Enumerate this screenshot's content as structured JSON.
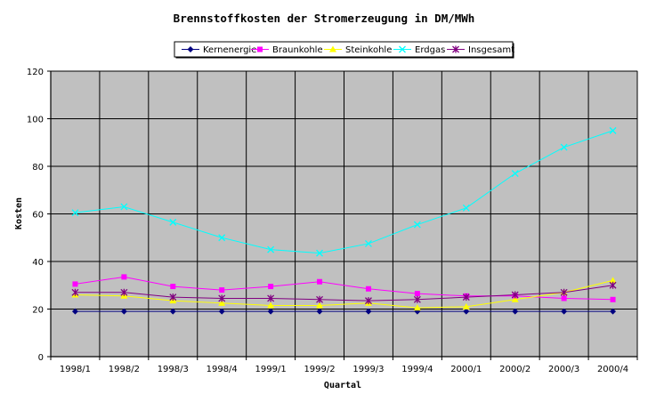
{
  "chart_data": {
    "type": "line",
    "title": "Brennstoffkosten der Stromerzeugung in DM/MWh",
    "xlabel": "Quartal",
    "ylabel": "Kosten",
    "ylim": [
      0,
      120
    ],
    "ytick_step": 20,
    "grid": true,
    "legend_position": "top-center",
    "plot_background": "#c0c0c0",
    "categories": [
      "1998/1",
      "1998/2",
      "1998/3",
      "1998/4",
      "1999/1",
      "1999/2",
      "1999/3",
      "1999/4",
      "2000/1",
      "2000/2",
      "2000/3",
      "2000/4"
    ],
    "series": [
      {
        "name": "Kernenergie",
        "color": "#000080",
        "marker": "diamond",
        "values": [
          19,
          19,
          19,
          19,
          19,
          19,
          19,
          19,
          19,
          19,
          19,
          19
        ]
      },
      {
        "name": "Braunkohle",
        "color": "#ff00ff",
        "marker": "square",
        "values": [
          30.5,
          33.5,
          29.5,
          28,
          29.5,
          31.5,
          28.5,
          26.5,
          25.5,
          25.5,
          24.5,
          24
        ]
      },
      {
        "name": "Steinkohle",
        "color": "#ffff00",
        "marker": "triangle",
        "values": [
          26,
          25.5,
          23.5,
          22.5,
          21.5,
          21.5,
          22.5,
          20.5,
          21,
          24,
          27,
          32
        ]
      },
      {
        "name": "Erdgas",
        "color": "#00ffff",
        "marker": "x",
        "values": [
          60.5,
          63,
          56.5,
          50,
          45,
          43.5,
          47.5,
          55.5,
          62.5,
          77,
          88,
          95
        ]
      },
      {
        "name": "Insgesamt",
        "color": "#800080",
        "marker": "star",
        "values": [
          27,
          27,
          25,
          24.5,
          24.5,
          24,
          23.5,
          24,
          25,
          26,
          27,
          30
        ]
      }
    ]
  }
}
